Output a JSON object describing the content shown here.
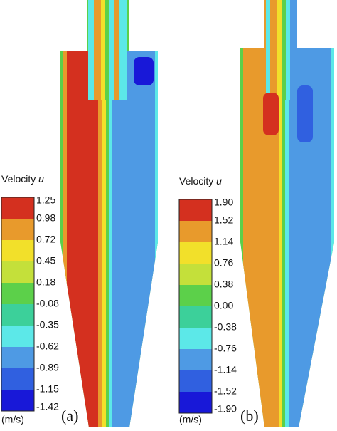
{
  "panels": [
    {
      "label": "(a)",
      "legend_title": "Velocity",
      "legend_symbol": "u",
      "unit": "(m/s)",
      "ticks": [
        "1.25",
        "0.98",
        "0.72",
        "0.45",
        "0.18",
        "-0.08",
        "-0.35",
        "-0.62",
        "-0.89",
        "-1.15",
        "-1.42"
      ]
    },
    {
      "label": "(b)",
      "legend_title": "Velocity",
      "legend_symbol": "u",
      "unit": "(m/s)",
      "ticks": [
        "1.90",
        "1.52",
        "1.14",
        "0.76",
        "0.38",
        "0.00",
        "-0.38",
        "-0.76",
        "-1.14",
        "-1.52",
        "-1.90"
      ]
    }
  ]
}
